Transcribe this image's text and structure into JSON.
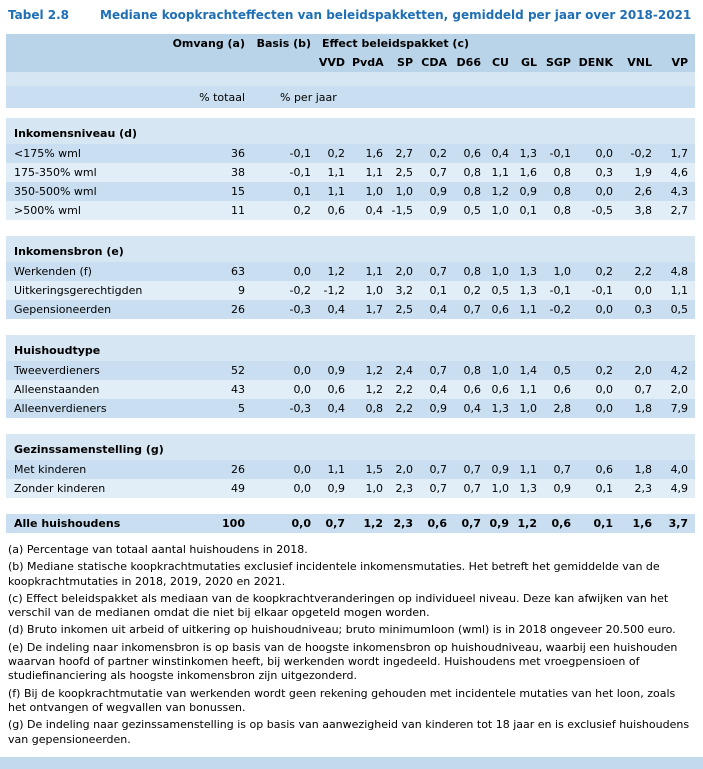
{
  "title": {
    "label": "Tabel 2.8",
    "text": "Mediane koopkrachteffecten van beleidspakketten, gemiddeld per jaar over 2018-2021"
  },
  "colors": {
    "title_blue": "#1f6fb5",
    "header_bg": "#b9d4e9",
    "header_gap_bg": "#d6e7f3",
    "units_bg": "#c9def0",
    "section_header_bg": "#d6e7f3",
    "row_dark": "#c9def0",
    "row_light": "#e1eef8",
    "bottom_band": "#c3d9ec"
  },
  "table": {
    "header": {
      "omvang": "Omvang (a)",
      "basis": "Basis (b)",
      "effect": "Effect beleidspakket (c)",
      "parties": [
        "VVD",
        "PvdA",
        "SP",
        "CDA",
        "D66",
        "CU",
        "GL",
        "SGP",
        "DENK",
        "VNL",
        "VP"
      ],
      "unit_omvang": "% totaal",
      "unit_basis": "% per jaar"
    },
    "sections": [
      {
        "name": "Inkomensniveau (d)",
        "rows": [
          {
            "label": "<175% wml",
            "omvang": "36",
            "basis": "-0,1",
            "values": [
              "0,2",
              "1,6",
              "2,7",
              "0,2",
              "0,6",
              "0,4",
              "1,3",
              "-0,1",
              "0,0",
              "-0,2",
              "1,7"
            ]
          },
          {
            "label": "175-350% wml",
            "omvang": "38",
            "basis": "-0,1",
            "values": [
              "1,1",
              "1,1",
              "2,5",
              "0,7",
              "0,8",
              "1,1",
              "1,6",
              "0,8",
              "0,3",
              "1,9",
              "4,6"
            ]
          },
          {
            "label": "350-500% wml",
            "omvang": "15",
            "basis": "0,1",
            "values": [
              "1,1",
              "1,0",
              "1,0",
              "0,9",
              "0,8",
              "1,2",
              "0,9",
              "0,8",
              "0,0",
              "2,6",
              "4,3"
            ]
          },
          {
            "label": ">500% wml",
            "omvang": "11",
            "basis": "0,2",
            "values": [
              "0,6",
              "0,4",
              "-1,5",
              "0,9",
              "0,5",
              "1,0",
              "0,1",
              "0,8",
              "-0,5",
              "3,8",
              "2,7"
            ]
          }
        ]
      },
      {
        "name": "Inkomensbron (e)",
        "rows": [
          {
            "label": "Werkenden (f)",
            "omvang": "63",
            "basis": "0,0",
            "values": [
              "1,2",
              "1,1",
              "2,0",
              "0,7",
              "0,8",
              "1,0",
              "1,3",
              "1,0",
              "0,2",
              "2,2",
              "4,8"
            ]
          },
          {
            "label": "Uitkeringsgerechtigden",
            "omvang": "9",
            "basis": "-0,2",
            "values": [
              "-1,2",
              "1,0",
              "3,2",
              "0,1",
              "0,2",
              "0,5",
              "1,3",
              "-0,1",
              "-0,1",
              "0,0",
              "1,1"
            ]
          },
          {
            "label": "Gepensioneerden",
            "omvang": "26",
            "basis": "-0,3",
            "values": [
              "0,4",
              "1,7",
              "2,5",
              "0,4",
              "0,7",
              "0,6",
              "1,1",
              "-0,2",
              "0,0",
              "0,3",
              "0,5"
            ]
          }
        ]
      },
      {
        "name": "Huishoudtype",
        "rows": [
          {
            "label": "Tweeverdieners",
            "omvang": "52",
            "basis": "0,0",
            "values": [
              "0,9",
              "1,2",
              "2,4",
              "0,7",
              "0,8",
              "1,0",
              "1,4",
              "0,5",
              "0,2",
              "2,0",
              "4,2"
            ]
          },
          {
            "label": "Alleenstaanden",
            "omvang": "43",
            "basis": "0,0",
            "values": [
              "0,6",
              "1,2",
              "2,2",
              "0,4",
              "0,6",
              "0,6",
              "1,1",
              "0,6",
              "0,0",
              "0,7",
              "2,0"
            ]
          },
          {
            "label": "Alleenverdieners",
            "omvang": "5",
            "basis": "-0,3",
            "values": [
              "0,4",
              "0,8",
              "2,2",
              "0,9",
              "0,4",
              "1,3",
              "1,0",
              "2,8",
              "0,0",
              "1,8",
              "7,9"
            ]
          }
        ]
      },
      {
        "name": "Gezinssamenstelling (g)",
        "rows": [
          {
            "label": "Met kinderen",
            "omvang": "26",
            "basis": "0,0",
            "values": [
              "1,1",
              "1,5",
              "2,0",
              "0,7",
              "0,7",
              "0,9",
              "1,1",
              "0,7",
              "0,6",
              "1,8",
              "4,0"
            ]
          },
          {
            "label": "Zonder kinderen",
            "omvang": "49",
            "basis": "0,0",
            "values": [
              "0,9",
              "1,0",
              "2,3",
              "0,7",
              "0,7",
              "1,0",
              "1,3",
              "0,9",
              "0,1",
              "2,3",
              "4,9"
            ]
          }
        ]
      }
    ],
    "total_row": {
      "label": "Alle huishoudens",
      "omvang": "100",
      "basis": "0,0",
      "values": [
        "0,7",
        "1,2",
        "2,3",
        "0,6",
        "0,7",
        "0,9",
        "1,2",
        "0,6",
        "0,1",
        "1,6",
        "3,7"
      ]
    }
  },
  "footnotes": [
    "(a) Percentage van totaal aantal huishoudens in 2018.",
    "(b) Mediane statische koopkrachtmutaties exclusief incidentele inkomensmutaties. Het betreft het gemiddelde van de koopkrachtmutaties in 2018, 2019, 2020 en 2021.",
    "(c) Effect beleidspakket als mediaan van de koopkrachtveranderingen op individueel niveau. Deze kan afwijken van het verschil van de medianen omdat die niet bij elkaar opgeteld mogen worden.",
    "(d) Bruto inkomen uit arbeid of uitkering op huishoudniveau; bruto minimumloon (wml) is in 2018 ongeveer 20.500 euro.",
    "(e) De indeling naar inkomensbron is op basis van de hoogste inkomensbron op huishoudniveau, waarbij een huishouden waarvan hoofd of partner winstinkomen heeft, bij werkenden wordt ingedeeld. Huishoudens met vroegpensioen of studiefinanciering als hoogste inkomensbron zijn uitgezonderd.",
    "(f) Bij de koopkrachtmutatie van werkenden wordt geen rekening gehouden met incidentele mutaties van het loon, zoals het ontvangen of wegvallen van bonussen.",
    "(g) De indeling naar gezinssamenstelling is op basis van aanwezigheid van kinderen tot 18 jaar en is exclusief huishoudens van gepensioneerden."
  ]
}
